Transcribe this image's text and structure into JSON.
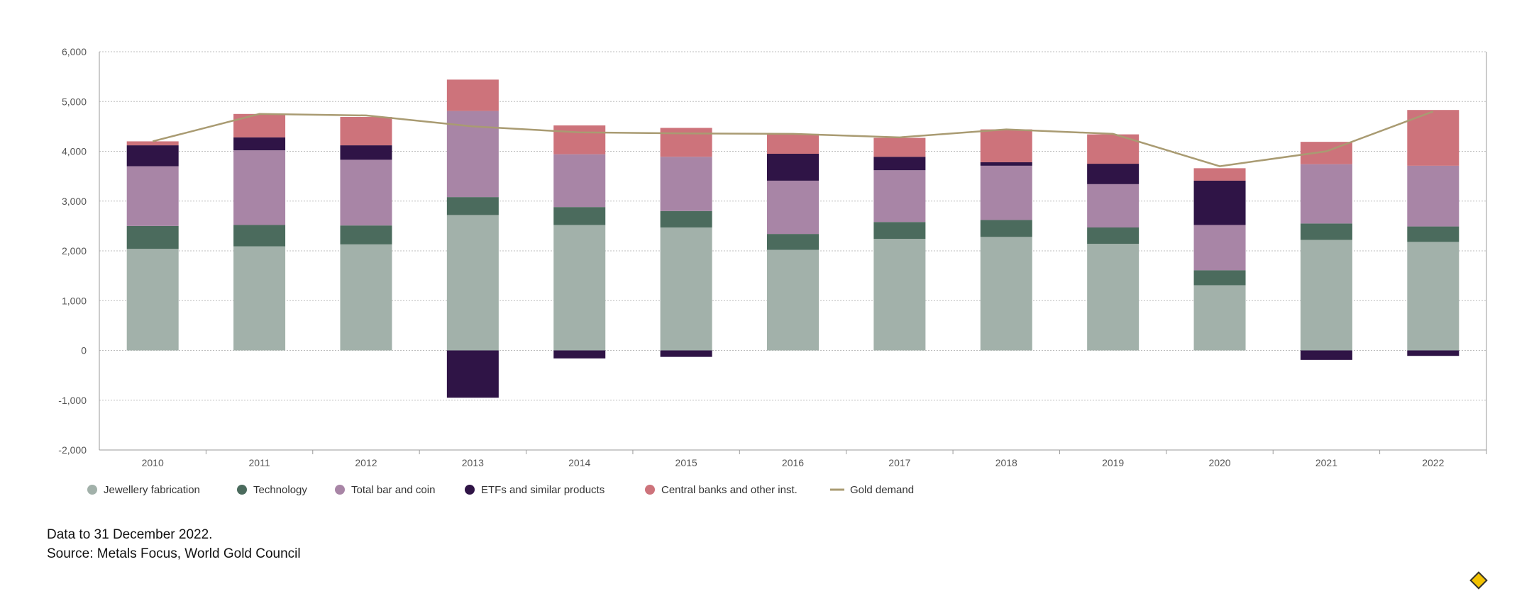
{
  "colors": {
    "jewellery": "#a2b1aa",
    "technology": "#4b6b5d",
    "barcoin": "#a885a6",
    "etf": "#2f1446",
    "central": "#cd737b",
    "demand": "#a99b72",
    "grid": "#bdbdbd",
    "axis": "#9a9a9a"
  },
  "chart_data": {
    "type": "bar",
    "stacked": true,
    "categories": [
      "2010",
      "2011",
      "2012",
      "2013",
      "2014",
      "2015",
      "2016",
      "2017",
      "2018",
      "2019",
      "2020",
      "2021",
      "2022"
    ],
    "ylim": [
      -2000,
      6000
    ],
    "yticks": [
      6000,
      5000,
      4000,
      3000,
      2000,
      1000,
      0,
      -1000,
      -2000
    ],
    "ytick_labels": [
      "6,000",
      "5,000",
      "4,000",
      "3,000",
      "2,000",
      "1,000",
      "0",
      "-1,000",
      "-2,000"
    ],
    "series": [
      {
        "key": "jewellery",
        "name": "Jewellery fabrication",
        "values": [
          2040,
          2090,
          2130,
          2720,
          2520,
          2470,
          2020,
          2240,
          2280,
          2140,
          1310,
          2220,
          2180
        ]
      },
      {
        "key": "technology",
        "name": "Technology",
        "values": [
          460,
          430,
          380,
          360,
          360,
          330,
          320,
          340,
          340,
          330,
          300,
          330,
          310
        ]
      },
      {
        "key": "barcoin",
        "name": "Total bar and coin",
        "values": [
          1200,
          1500,
          1320,
          1730,
          1060,
          1090,
          1070,
          1040,
          1090,
          870,
          910,
          1190,
          1220
        ]
      },
      {
        "key": "etf",
        "name": "ETFs and similar products",
        "values": [
          420,
          260,
          290,
          -950,
          -160,
          -130,
          540,
          270,
          70,
          410,
          890,
          -190,
          -110
        ]
      },
      {
        "key": "central",
        "name": "Central banks and other inst.",
        "values": [
          80,
          470,
          570,
          630,
          580,
          580,
          400,
          380,
          660,
          590,
          250,
          450,
          1120
        ]
      }
    ],
    "line": {
      "key": "demand",
      "name": "Gold demand",
      "values": [
        4200,
        4750,
        4720,
        4500,
        4380,
        4360,
        4350,
        4280,
        4440,
        4350,
        3700,
        4000,
        4800
      ]
    },
    "xlabel": "",
    "ylabel": "",
    "grid": true,
    "legend_position": "bottom-left"
  },
  "notes": {
    "date": "Data to 31 December 2022.",
    "source": "Source: Metals Focus, World Gold Council"
  },
  "watermark": {
    "icon": "logo-diamond-icon"
  }
}
